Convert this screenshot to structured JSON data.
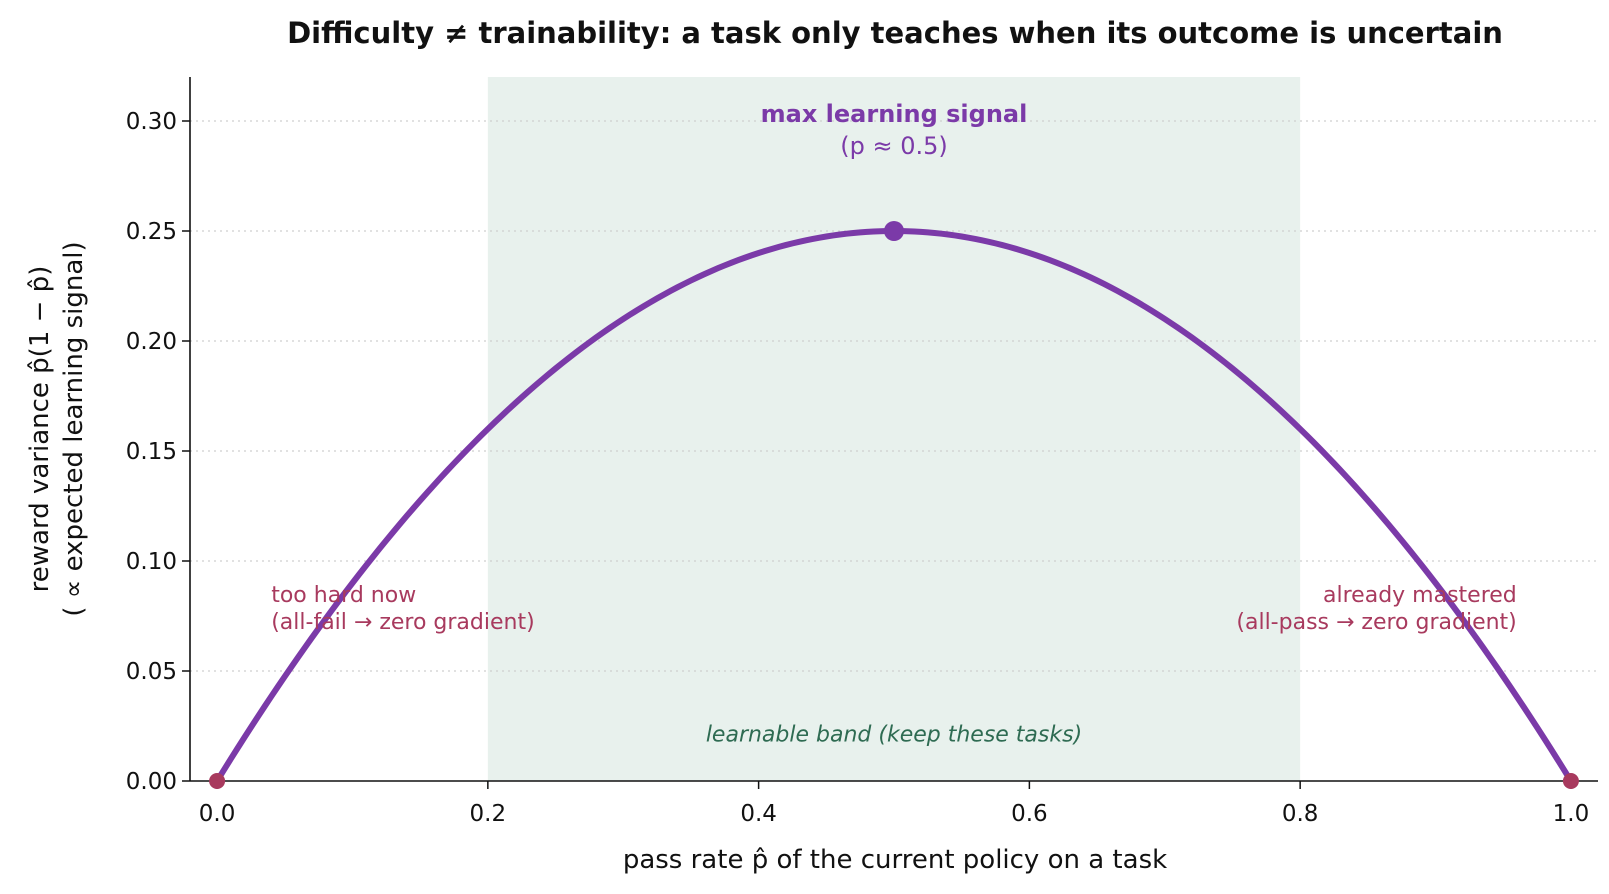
{
  "chart_data": {
    "type": "line",
    "title": "Difficulty ≠ trainability: a task only teaches when its outcome is uncertain",
    "xlabel": "pass rate  p̂  of the current policy on a task",
    "ylabel_line1": "reward variance  p̂(1 − p̂)",
    "ylabel_line2": "( ∝  expected learning signal)",
    "xlim": [
      -0.02,
      1.02
    ],
    "ylim": [
      0.0,
      0.32
    ],
    "x_ticks": [
      0.0,
      0.2,
      0.4,
      0.6,
      0.8,
      1.0
    ],
    "x_tick_labels": [
      "0.0",
      "0.2",
      "0.4",
      "0.6",
      "0.8",
      "1.0"
    ],
    "y_ticks": [
      0.0,
      0.05,
      0.1,
      0.15,
      0.2,
      0.25,
      0.3
    ],
    "y_tick_labels": [
      "0.00",
      "0.05",
      "0.10",
      "0.15",
      "0.20",
      "0.25",
      "0.30"
    ],
    "grid": "horizontal dotted",
    "series": [
      {
        "function": "p*(1-p)",
        "x": [
          0.0,
          0.05,
          0.1,
          0.15,
          0.2,
          0.25,
          0.3,
          0.35,
          0.4,
          0.45,
          0.5,
          0.55,
          0.6,
          0.65,
          0.7,
          0.75,
          0.8,
          0.85,
          0.9,
          0.95,
          1.0
        ],
        "values": [
          0.0,
          0.0475,
          0.09,
          0.1275,
          0.16,
          0.1875,
          0.21,
          0.2275,
          0.24,
          0.2475,
          0.25,
          0.2475,
          0.24,
          0.2275,
          0.21,
          0.1875,
          0.16,
          0.1275,
          0.09,
          0.0475,
          0.0
        ],
        "color": "#7b3aa8"
      }
    ],
    "band": {
      "x_range": [
        0.2,
        0.8
      ],
      "color": "#e8f1ed",
      "label": "learnable band  (keep these tasks)",
      "label_color": "#2e6b52"
    },
    "peak": {
      "x": 0.5,
      "y": 0.25,
      "label": "max learning signal",
      "sublabel": "(p ≈ 0.5)",
      "color": "#7b3aa8"
    },
    "endpoints": {
      "points": [
        [
          0.0,
          0.0
        ],
        [
          1.0,
          0.0
        ]
      ],
      "color": "#a83a5e"
    },
    "annotations": [
      {
        "id": "too-hard",
        "line1": "too hard now",
        "line2": "(all-fail → zero gradient)",
        "x": 0.04,
        "y": 0.085,
        "align": "left",
        "color": "#a83a5e"
      },
      {
        "id": "mastered",
        "line1": "already mastered",
        "line2": "(all-pass → zero gradient)",
        "x": 0.96,
        "y": 0.085,
        "align": "right",
        "color": "#a83a5e"
      }
    ]
  }
}
